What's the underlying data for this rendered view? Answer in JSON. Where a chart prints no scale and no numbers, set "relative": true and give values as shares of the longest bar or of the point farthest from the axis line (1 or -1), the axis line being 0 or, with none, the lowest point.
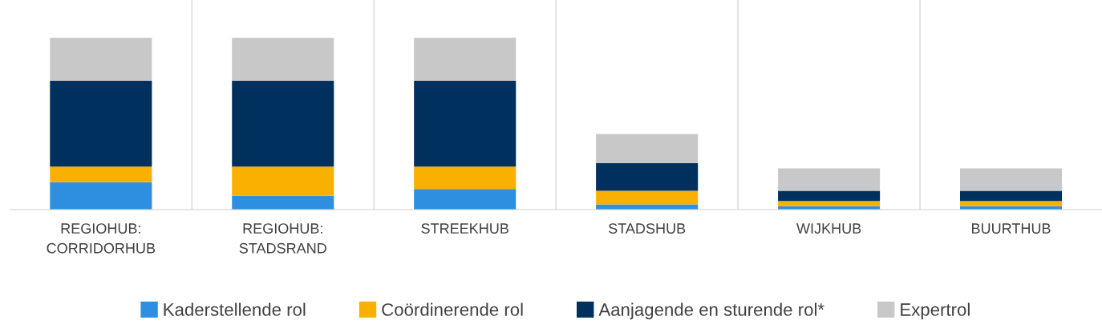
{
  "chart_data": {
    "type": "bar",
    "stacked": true,
    "relative": true,
    "categories": [
      "REGIOHUB:\nCORRIDORHUB",
      "REGIOHUB:\nSTADSRAND",
      "STREEKHUB",
      "STADSHUB",
      "WIJKHUB",
      "BUURTHUB"
    ],
    "series": [
      {
        "name": "Kaderstellende rol",
        "color": "#2e8fe0",
        "values": [
          0.16,
          0.08,
          0.12,
          0.03,
          0.02,
          0.02
        ]
      },
      {
        "name": "Coördinerende rol",
        "color": "#f9b000",
        "values": [
          0.09,
          0.17,
          0.13,
          0.08,
          0.03,
          0.03
        ]
      },
      {
        "name": "Aanjagende en sturende rol*",
        "color": "#00305e",
        "values": [
          0.5,
          0.5,
          0.5,
          0.16,
          0.06,
          0.06
        ]
      },
      {
        "name": "Expertrol",
        "color": "#c8c8c8",
        "values": [
          0.25,
          0.25,
          0.25,
          0.17,
          0.13,
          0.13
        ]
      }
    ],
    "grid": "x",
    "legend": "bottom"
  }
}
